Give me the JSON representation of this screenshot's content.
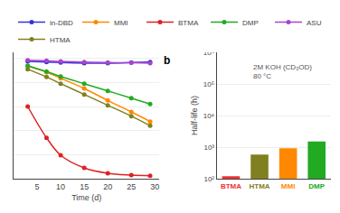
{
  "chart_data": [
    {
      "type": "line",
      "xlabel": "Time (d)",
      "x": [
        3,
        7,
        10,
        15,
        20,
        25,
        29
      ],
      "series": [
        {
          "name": "in-DBD",
          "color": "#3333dd",
          "values": [
            0.975,
            0.97,
            0.965,
            0.96,
            0.96,
            0.965,
            0.97
          ]
        },
        {
          "name": "MMI",
          "color": "#ff8800",
          "values": [
            0.935,
            0.885,
            0.835,
            0.75,
            0.65,
            0.555,
            0.475
          ]
        },
        {
          "name": "BTMA",
          "color": "#dd2222",
          "values": [
            0.6,
            0.34,
            0.195,
            0.09,
            0.045,
            0.03,
            0.025
          ]
        },
        {
          "name": "DMP",
          "color": "#22aa22",
          "values": [
            0.94,
            0.89,
            0.85,
            0.79,
            0.73,
            0.67,
            0.62
          ]
        },
        {
          "name": "ASU",
          "color": "#aa44cc",
          "values": [
            0.985,
            0.98,
            0.975,
            0.97,
            0.965,
            0.963,
            0.96
          ]
        },
        {
          "name": "HTMA",
          "color": "#808020",
          "values": [
            0.91,
            0.845,
            0.79,
            0.7,
            0.61,
            0.52,
            0.44
          ]
        }
      ],
      "xlim": [
        0,
        31
      ],
      "ylim": [
        0.0,
        1.05
      ],
      "xticks": [
        5,
        10,
        15,
        20,
        25,
        30
      ],
      "yticks": [
        0.0,
        0.2,
        0.4,
        0.6,
        0.8,
        1.0
      ],
      "tick_labels": "x",
      "grid": true,
      "legend": "top",
      "marker": "circle"
    },
    {
      "type": "bar",
      "title": "b",
      "ylabel": "Half-life (h)",
      "annotations": [
        "2M KOH (CD₃OD)\n80 °C"
      ],
      "categories": [
        "BTMA",
        "HTMA",
        "MMI",
        "DMP"
      ],
      "values": [
        120,
        580,
        920,
        1500
      ],
      "colors": [
        "#ee3333",
        "#808020",
        "#ff8800",
        "#22aa22"
      ],
      "log": "y",
      "ylim": [
        100,
        1000000
      ],
      "yticks": [
        {
          "value": 100,
          "label": "10²"
        },
        {
          "value": 1000,
          "label": "10³"
        },
        {
          "value": 10000,
          "label": "10⁴"
        },
        {
          "value": 100000,
          "label": "10⁵"
        },
        {
          "value": 1000000,
          "label": "10⁶"
        }
      ],
      "grid": true
    }
  ]
}
